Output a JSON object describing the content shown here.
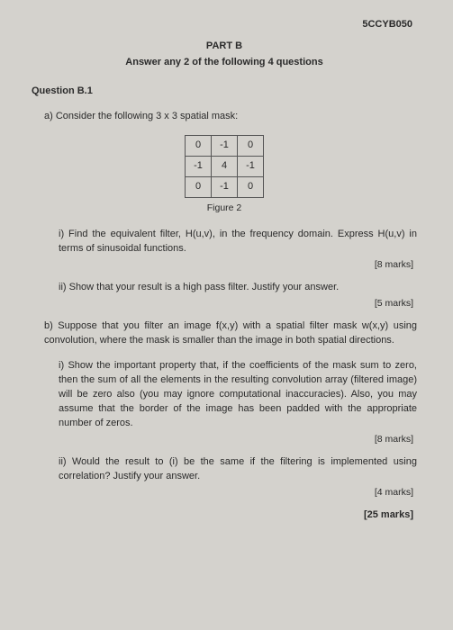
{
  "course_code": "5CCYB050",
  "part_label": "PART B",
  "instruction": "Answer any 2 of the following 4 questions",
  "question_label": "Question B.1",
  "a_text": "a) Consider the following 3 x 3 spatial mask:",
  "matrix": {
    "r0c0": "0",
    "r0c1": "-1",
    "r0c2": "0",
    "r1c0": "-1",
    "r1c1": "4",
    "r1c2": "-1",
    "r2c0": "0",
    "r2c1": "-1",
    "r2c2": "0"
  },
  "figure_caption": "Figure 2",
  "a_i": "i) Find the equivalent filter, H(u,v), in the frequency domain. Express H(u,v) in terms of sinusoidal functions.",
  "a_i_marks": "[8 marks]",
  "a_ii": "ii) Show that your result is a high pass filter. Justify your answer.",
  "a_ii_marks": "[5 marks]",
  "b_text": "b) Suppose that you filter an image f(x,y) with a spatial filter mask w(x,y) using convolution, where the mask is smaller than the image in both spatial directions.",
  "b_i": "i) Show the important property that, if the coefficients of the mask sum to zero, then the sum of all the elements in the resulting convolution array (filtered image) will be zero also (you may ignore computational inaccuracies). Also, you may assume that the border of the image has been padded with the appropriate number of zeros.",
  "b_i_marks": "[8 marks]",
  "b_ii": "ii) Would the result to (i) be the same if the filtering is implemented using correlation? Justify your answer.",
  "b_ii_marks": "[4 marks]",
  "total_marks": "[25 marks]"
}
